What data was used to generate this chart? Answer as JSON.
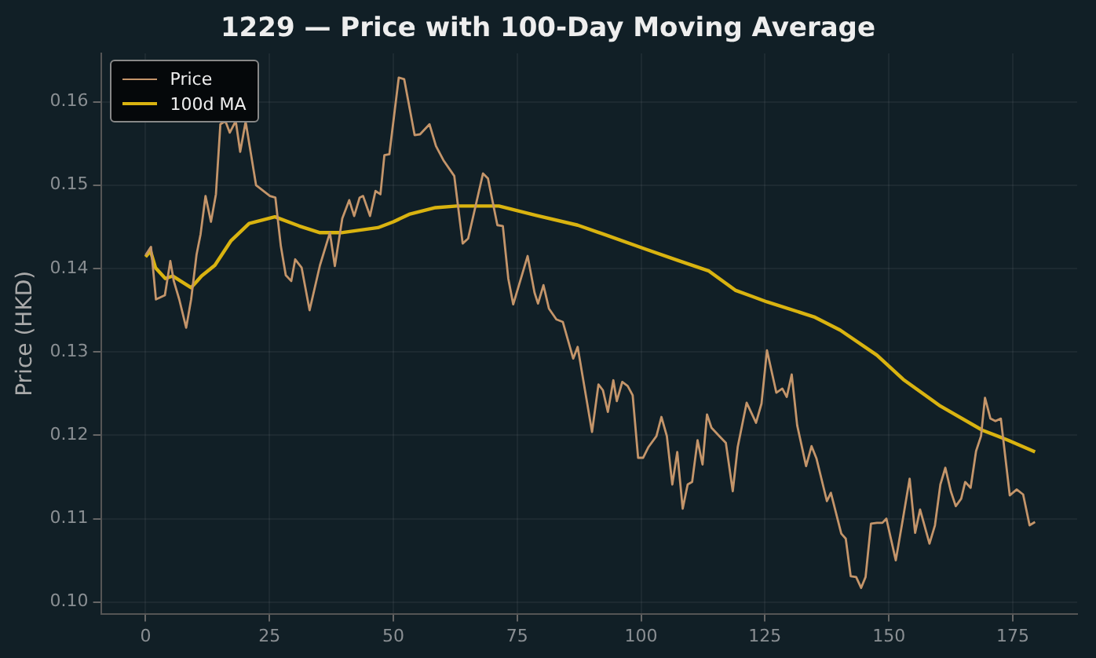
{
  "chart_data": {
    "type": "line",
    "title": "1229 — Price with 100-Day Moving Average",
    "ylabel": "Price (HKD)",
    "xlim": [
      -9,
      188
    ],
    "ylim": [
      0.0986,
      0.1658
    ],
    "xticks": [
      0,
      25,
      50,
      75,
      100,
      125,
      150,
      175
    ],
    "yticks": [
      {
        "value": 0.1,
        "label": "0.10"
      },
      {
        "value": 0.11,
        "label": "0.11"
      },
      {
        "value": 0.12,
        "label": "0.12"
      },
      {
        "value": 0.13,
        "label": "0.13"
      },
      {
        "value": 0.14,
        "label": "0.14"
      },
      {
        "value": 0.15,
        "label": "0.15"
      },
      {
        "value": 0.16,
        "label": "0.16"
      }
    ],
    "grid": true,
    "legend": "top left",
    "marker": "none",
    "line_style": "solid",
    "series": [
      {
        "name": "Price",
        "color": "#c4956a",
        "x": [
          0,
          1.1,
          2.1,
          3.9,
          5,
          5.7,
          6.8,
          8.2,
          9.2,
          10.3,
          11.1,
          12.1,
          13.2,
          14.2,
          15.1,
          16.1,
          17,
          18.2,
          19.1,
          20.2,
          22.3,
          25.1,
          26.2,
          27.3,
          28.3,
          29.4,
          30.2,
          31.5,
          33.1,
          35.2,
          37.2,
          38.2,
          39.7,
          41.1,
          42.1,
          43.2,
          43.9,
          45.3,
          46.4,
          47.4,
          48.2,
          49.2,
          51.1,
          52.2,
          54.3,
          55.4,
          57.3,
          58.6,
          60.1,
          62.3,
          64,
          65.1,
          68.1,
          69.1,
          71,
          72.1,
          73.2,
          74.2,
          77.1,
          78.5,
          79.2,
          80.3,
          81.4,
          82.9,
          84.2,
          86.3,
          87.2,
          90.1,
          91.4,
          92.3,
          93.3,
          94.4,
          95.1,
          96.2,
          97.3,
          98.3,
          99.4,
          100.4,
          101.5,
          103.1,
          104.1,
          105.2,
          106.3,
          107.3,
          108.4,
          109.4,
          110.3,
          111.4,
          112.4,
          113.3,
          114.2,
          115.8,
          117.1,
          118.5,
          119.5,
          121.3,
          123.2,
          124.3,
          125.4,
          127.3,
          128.5,
          129.4,
          130.4,
          131.5,
          133.3,
          134.4,
          135.4,
          137.5,
          138.3,
          140.4,
          141.3,
          142.3,
          143.4,
          144.4,
          145.3,
          146.4,
          147.6,
          148.7,
          149.5,
          151.4,
          152.9,
          154.2,
          155.3,
          156.3,
          158.2,
          159.3,
          160.4,
          161.4,
          162.5,
          163.5,
          164.6,
          165.4,
          166.5,
          167.6,
          168.6,
          169.4,
          170.5,
          171.5,
          172.6,
          174.4,
          175.8,
          177.1,
          178.4,
          179.5
        ],
        "values": [
          0.1416,
          0.1426,
          0.1363,
          0.1368,
          0.1409,
          0.1385,
          0.1363,
          0.1329,
          0.1363,
          0.1417,
          0.1441,
          0.1487,
          0.1456,
          0.1489,
          0.1573,
          0.1577,
          0.1563,
          0.1577,
          0.154,
          0.1576,
          0.15,
          0.1487,
          0.1485,
          0.1427,
          0.1392,
          0.1385,
          0.1411,
          0.1401,
          0.135,
          0.1404,
          0.1443,
          0.1403,
          0.146,
          0.1482,
          0.1463,
          0.1485,
          0.1487,
          0.1463,
          0.1493,
          0.1489,
          0.1536,
          0.1537,
          0.1629,
          0.1627,
          0.156,
          0.1561,
          0.1573,
          0.1547,
          0.153,
          0.1511,
          0.143,
          0.1436,
          0.1514,
          0.1508,
          0.1452,
          0.1451,
          0.1388,
          0.1357,
          0.1415,
          0.1371,
          0.1358,
          0.138,
          0.1352,
          0.1339,
          0.1336,
          0.1292,
          0.1306,
          0.1204,
          0.1261,
          0.1254,
          0.1228,
          0.1266,
          0.1241,
          0.1264,
          0.1259,
          0.1248,
          0.1173,
          0.1173,
          0.1186,
          0.1199,
          0.1222,
          0.1199,
          0.1141,
          0.118,
          0.1112,
          0.1141,
          0.1144,
          0.1194,
          0.1165,
          0.1225,
          0.1209,
          0.1199,
          0.1191,
          0.1133,
          0.1186,
          0.1239,
          0.1215,
          0.1238,
          0.1302,
          0.1251,
          0.1256,
          0.1246,
          0.1273,
          0.1212,
          0.1163,
          0.1187,
          0.1172,
          0.1121,
          0.1131,
          0.1082,
          0.1076,
          0.1031,
          0.103,
          0.1017,
          0.103,
          0.1094,
          0.1095,
          0.1095,
          0.11,
          0.105,
          0.1102,
          0.1148,
          0.1083,
          0.1111,
          0.107,
          0.1092,
          0.1141,
          0.1161,
          0.1133,
          0.1115,
          0.1124,
          0.1144,
          0.1137,
          0.1181,
          0.1199,
          0.1245,
          0.122,
          0.1217,
          0.122,
          0.1128,
          0.1135,
          0.1129,
          0.1092,
          0.1096
        ]
      },
      {
        "name": "100d MA",
        "color": "#d9b310",
        "x": [
          0,
          1,
          2,
          4,
          5.5,
          9.2,
          11.3,
          14,
          17.2,
          20.9,
          26.1,
          31,
          35.2,
          39.5,
          46.9,
          50,
          53.2,
          58.5,
          62.8,
          71.3,
          78.7,
          87.2,
          92.5,
          101,
          107.3,
          113.7,
          119,
          122.2,
          125.4,
          134.9,
          140.2,
          147.6,
          152.9,
          160.4,
          168.9,
          174.1,
          179.5
        ],
        "values": [
          0.1414,
          0.1421,
          0.1401,
          0.1388,
          0.1391,
          0.1377,
          0.1391,
          0.1404,
          0.1433,
          0.1454,
          0.1462,
          0.1451,
          0.1443,
          0.1443,
          0.1449,
          0.1456,
          0.1465,
          0.1473,
          0.1475,
          0.1475,
          0.1464,
          0.1452,
          0.1441,
          0.1423,
          0.141,
          0.1397,
          0.1374,
          0.1367,
          0.136,
          0.1342,
          0.1326,
          0.1296,
          0.1267,
          0.1235,
          0.1206,
          0.1194,
          0.118
        ]
      }
    ]
  }
}
